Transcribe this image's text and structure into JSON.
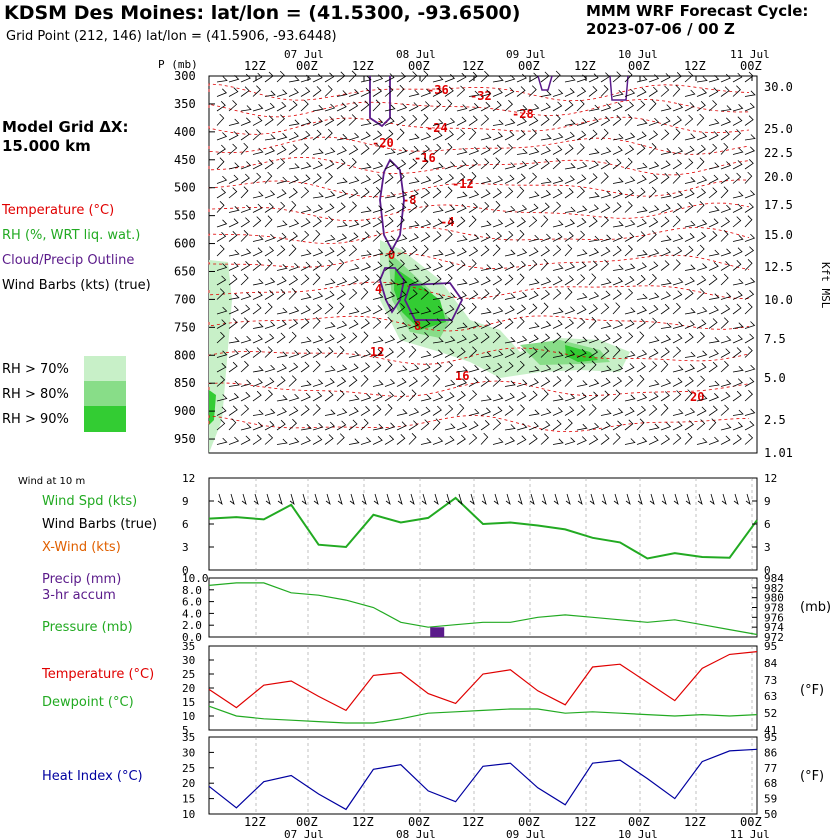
{
  "header": {
    "title": "KDSM Des Moines:  lat/lon = (41.5300, -93.6500)",
    "subtitle": "Grid Point (212, 146) lat/lon = (41.5906, -93.6448)",
    "model": "MMM WRF Forecast Cycle:",
    "cycle": "2023-07-06 / 00  Z",
    "grid_label": "Model Grid ΔX:",
    "grid_value": " 15.000 km"
  },
  "legend": {
    "temperature": "Temperature (°C)",
    "rh": "RH (%, WRT liq. wat.)",
    "cloud": "Cloud/Precip Outline",
    "barbs": "Wind Barbs (kts) (true)",
    "rh70": "RH > 70%",
    "rh80": "RH > 80%",
    "rh90": "RH > 90%"
  },
  "colors": {
    "temperature": "#e00000",
    "rh": "#22aa22",
    "cloud": "#5a1a8a",
    "rh70": "#c8f0c8",
    "rh80": "#88dd88",
    "rh90": "#33cc33",
    "heat_index": "#0000a0"
  },
  "time_axis": {
    "top_labels": [
      "12Z",
      "00Z",
      "12Z",
      "00Z",
      "12Z",
      "00Z",
      "12Z",
      "00Z",
      "12Z",
      "00Z"
    ],
    "date_labels": [
      "07 Jul",
      "08 Jul",
      "09 Jul",
      "10 Jul",
      "11 Jul"
    ]
  },
  "chart_data": [
    {
      "type": "heatmap",
      "name": "time-height cross section",
      "ylabel_left": "P (mb)",
      "ylabel_right": "Kft MSL",
      "pressure_ticks": [
        300,
        350,
        400,
        450,
        500,
        550,
        600,
        650,
        700,
        750,
        800,
        850,
        900,
        950
      ],
      "height_ticks": [
        "30.0",
        "25.0",
        "22.5",
        "20.0",
        "17.5",
        "15.0",
        "12.5",
        "10.0",
        "7.5",
        "5.0",
        "2.5",
        "1.01"
      ],
      "temperature_labels": [
        "-36",
        "-32",
        "-28",
        "-24",
        "-20",
        "-16",
        "-12",
        "-8",
        "-4",
        "0",
        "4",
        "8",
        "12",
        "16",
        "20"
      ]
    },
    {
      "type": "line",
      "name": "wind",
      "label_10m": "Wind at 10 m",
      "legend": [
        "Wind Spd (kts)",
        "Wind Barbs (true)",
        "X-Wind (kts)"
      ],
      "y_ticks": [
        0,
        3,
        6,
        9,
        12
      ],
      "ylim": [
        0,
        12
      ],
      "x_hours": [
        0,
        6,
        12,
        18,
        24,
        30,
        36,
        42,
        48,
        54,
        60,
        66,
        72,
        78,
        84,
        90,
        96,
        102,
        108,
        114,
        120
      ],
      "wind_speed": [
        6.7,
        6.9,
        6.6,
        8.5,
        3.3,
        3.0,
        7.2,
        6.2,
        6.8,
        9.4,
        6.0,
        6.2,
        5.8,
        5.3,
        4.2,
        3.6,
        1.5,
        2.2,
        1.7,
        1.6,
        6.5
      ]
    },
    {
      "type": "line",
      "name": "precip-pressure",
      "legend": [
        "Precip (mm)",
        "3-hr accum",
        "Pressure (mb)"
      ],
      "precip_ticks": [
        "0.0",
        "2.0",
        "4.0",
        "6.0",
        "8.0",
        "10.0"
      ],
      "pressure_ticks": [
        972,
        974,
        976,
        978,
        980,
        982,
        984
      ],
      "unit": "(mb)",
      "pressure": [
        982.5,
        983.0,
        983.0,
        981.0,
        980.5,
        979.5,
        978.0,
        975.0,
        974.0,
        974.5,
        975.0,
        975.0,
        976.0,
        976.5,
        976.0,
        975.5,
        975.0,
        975.5,
        974.5,
        973.5,
        972.5
      ],
      "precip": [
        0,
        0,
        0,
        0,
        0,
        0,
        0,
        0,
        0.8,
        0,
        0,
        0,
        0,
        0,
        0,
        0,
        0,
        0,
        0,
        0,
        0
      ]
    },
    {
      "type": "line",
      "name": "temperature-dewpoint",
      "legend": [
        "Temperature (°C)",
        "Dewpoint (°C)"
      ],
      "c_ticks": [
        5,
        10,
        15,
        20,
        25,
        30,
        35
      ],
      "f_ticks": [
        41,
        52,
        63,
        73,
        84,
        95
      ],
      "unit": "(°F)",
      "temperature": [
        19.5,
        13.0,
        21.0,
        22.5,
        17.0,
        12.0,
        24.5,
        25.5,
        18.0,
        14.5,
        25.0,
        26.5,
        19.0,
        14.0,
        27.5,
        28.5,
        22.0,
        15.5,
        27.0,
        32.0,
        33.0
      ],
      "dewpoint": [
        13.5,
        10.0,
        9.0,
        8.5,
        8.0,
        7.5,
        7.5,
        9.0,
        11.0,
        11.5,
        12.0,
        12.5,
        12.5,
        11.0,
        11.5,
        11.0,
        10.5,
        10.0,
        10.5,
        10.0,
        10.5
      ]
    },
    {
      "type": "line",
      "name": "heat-index",
      "legend": [
        "Heat Index (°C)"
      ],
      "c_ticks": [
        10,
        15,
        20,
        25,
        30,
        35
      ],
      "f_ticks": [
        50,
        59,
        68,
        77,
        86,
        95
      ],
      "unit": "(°F)",
      "heat_index": [
        19.0,
        12.0,
        20.5,
        22.5,
        16.5,
        11.5,
        24.5,
        26.0,
        17.5,
        14.0,
        25.5,
        26.5,
        18.5,
        13.0,
        26.5,
        27.5,
        21.5,
        15.0,
        27.0,
        30.5,
        31.0
      ]
    }
  ]
}
